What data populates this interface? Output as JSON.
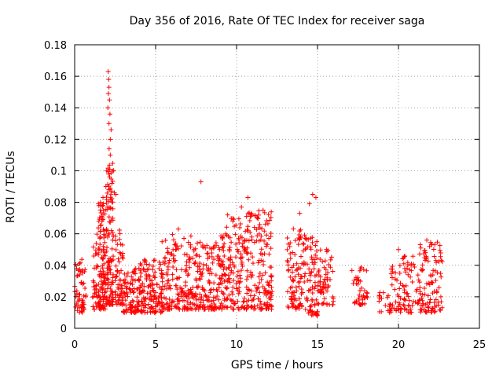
{
  "chart_data": {
    "type": "scatter",
    "title": "Day 356 of 2016, Rate Of TEC Index for receiver saga",
    "xlabel": "GPS time / hours",
    "ylabel": "ROTI / TECUs",
    "xlim": [
      0,
      25
    ],
    "ylim": [
      0,
      0.18
    ],
    "xticks": [
      "0",
      "5",
      "10",
      "15",
      "20",
      "25"
    ],
    "yticks": [
      "0",
      "0.02",
      "0.04",
      "0.06",
      "0.08",
      "0.1",
      "0.12",
      "0.14",
      "0.16",
      "0.18"
    ],
    "grid": true,
    "marker": "+",
    "color": "#ff0000",
    "clusters": [
      {
        "x": [
          0.0,
          0.7
        ],
        "y": [
          0.01,
          0.044
        ],
        "n": 55
      },
      {
        "x": [
          1.1,
          1.45
        ],
        "y": [
          0.012,
          0.06
        ],
        "n": 30
      },
      {
        "x": [
          1.45,
          1.9
        ],
        "y": [
          0.012,
          0.08
        ],
        "n": 110
      },
      {
        "x": [
          1.9,
          2.4
        ],
        "y": [
          0.015,
          0.105
        ],
        "n": 120
      },
      {
        "x": [
          2.5,
          3.0
        ],
        "y": [
          0.015,
          0.065
        ],
        "n": 60
      },
      {
        "x": [
          3.0,
          4.0
        ],
        "y": [
          0.01,
          0.04
        ],
        "n": 90
      },
      {
        "x": [
          4.0,
          5.5
        ],
        "y": [
          0.01,
          0.045
        ],
        "n": 150
      },
      {
        "x": [
          5.5,
          7.5
        ],
        "y": [
          0.012,
          0.06
        ],
        "n": 170
      },
      {
        "x": [
          7.5,
          9.0
        ],
        "y": [
          0.012,
          0.055
        ],
        "n": 130
      },
      {
        "x": [
          9.0,
          10.5
        ],
        "y": [
          0.012,
          0.07
        ],
        "n": 150
      },
      {
        "x": [
          10.5,
          12.2
        ],
        "y": [
          0.012,
          0.075
        ],
        "n": 170
      },
      {
        "x": [
          13.1,
          14.0
        ],
        "y": [
          0.012,
          0.065
        ],
        "n": 80
      },
      {
        "x": [
          14.0,
          15.0
        ],
        "y": [
          0.008,
          0.06
        ],
        "n": 90
      },
      {
        "x": [
          15.0,
          16.0
        ],
        "y": [
          0.015,
          0.05
        ],
        "n": 60
      },
      {
        "x": [
          17.1,
          18.1
        ],
        "y": [
          0.015,
          0.04
        ],
        "n": 45
      },
      {
        "x": [
          18.8,
          19.4
        ],
        "y": [
          0.01,
          0.024
        ],
        "n": 14
      },
      {
        "x": [
          19.4,
          20.2
        ],
        "y": [
          0.01,
          0.04
        ],
        "n": 40
      },
      {
        "x": [
          20.2,
          21.2
        ],
        "y": [
          0.01,
          0.048
        ],
        "n": 50
      },
      {
        "x": [
          21.2,
          22.7
        ],
        "y": [
          0.01,
          0.055
        ],
        "n": 110
      }
    ],
    "points": [
      [
        2.07,
        0.163
      ],
      [
        2.1,
        0.158
      ],
      [
        2.12,
        0.153
      ],
      [
        2.08,
        0.149
      ],
      [
        2.15,
        0.145
      ],
      [
        2.05,
        0.14
      ],
      [
        2.18,
        0.136
      ],
      [
        2.12,
        0.13
      ],
      [
        2.25,
        0.126
      ],
      [
        2.2,
        0.12
      ],
      [
        2.13,
        0.114
      ],
      [
        2.2,
        0.11
      ],
      [
        2.17,
        0.101
      ],
      [
        1.98,
        0.1
      ],
      [
        2.1,
        0.098
      ],
      [
        1.93,
        0.09
      ],
      [
        2.3,
        0.092
      ],
      [
        2.45,
        0.086
      ],
      [
        1.6,
        0.08
      ],
      [
        1.75,
        0.083
      ],
      [
        2.55,
        0.085
      ],
      [
        7.8,
        0.093
      ],
      [
        10.7,
        0.083
      ],
      [
        10.3,
        0.077
      ],
      [
        9.45,
        0.072
      ],
      [
        10.9,
        0.073
      ],
      [
        14.7,
        0.085
      ],
      [
        14.9,
        0.083
      ],
      [
        13.9,
        0.073
      ],
      [
        14.5,
        0.079
      ],
      [
        11.1,
        0.064
      ],
      [
        6.4,
        0.063
      ],
      [
        5.4,
        0.055
      ],
      [
        15.55,
        0.05
      ],
      [
        21.75,
        0.056
      ],
      [
        20.0,
        0.05
      ]
    ]
  }
}
